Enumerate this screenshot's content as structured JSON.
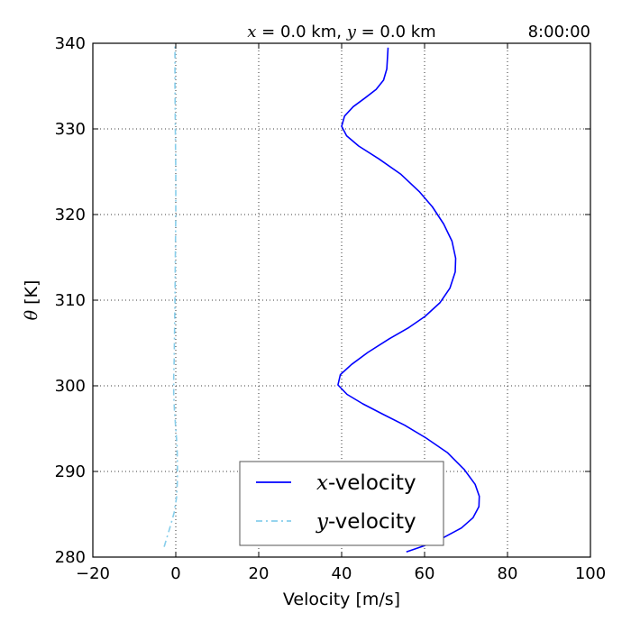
{
  "chart_data": {
    "type": "line",
    "title_left_x": "x",
    "title_left_eq1": " = 0.0 km, ",
    "title_left_y": "y",
    "title_left_eq2": " = 0.0 km",
    "title_right": "8:00:00",
    "xlabel": "Velocity [m/s]",
    "ylabel_symbol": "θ",
    "ylabel_unit": " [K]",
    "xlim": [
      -20,
      100
    ],
    "ylim": [
      280,
      340
    ],
    "xticks": [
      -20,
      0,
      20,
      40,
      60,
      80,
      100
    ],
    "xtick_labels": [
      "−20",
      "0",
      "20",
      "40",
      "60",
      "80",
      "100"
    ],
    "yticks": [
      280,
      290,
      300,
      310,
      320,
      330,
      340
    ],
    "ytick_labels": [
      "280",
      "290",
      "300",
      "310",
      "320",
      "330",
      "340"
    ],
    "grid": true,
    "legend_position": "lower-center",
    "series": [
      {
        "name_symbol": "x",
        "name_text": "-velocity",
        "color": "#0000ff",
        "dash": "solid",
        "points": [
          [
            55.6,
            280.6
          ],
          [
            59.8,
            281.3
          ],
          [
            64.7,
            282.3
          ],
          [
            68.9,
            283.4
          ],
          [
            71.7,
            284.6
          ],
          [
            73.1,
            285.9
          ],
          [
            73.2,
            287.1
          ],
          [
            72.2,
            288.5
          ],
          [
            69.6,
            290.2
          ],
          [
            65.5,
            292.2
          ],
          [
            60.4,
            293.9
          ],
          [
            55.2,
            295.4
          ],
          [
            49.9,
            296.7
          ],
          [
            45.1,
            297.9
          ],
          [
            41.3,
            299.0
          ],
          [
            39.1,
            300.1
          ],
          [
            39.7,
            301.3
          ],
          [
            42.4,
            302.5
          ],
          [
            46.3,
            303.9
          ],
          [
            51.5,
            305.5
          ],
          [
            56.2,
            306.8
          ],
          [
            60.1,
            308.1
          ],
          [
            63.7,
            309.7
          ],
          [
            66.1,
            311.4
          ],
          [
            67.4,
            313.3
          ],
          [
            67.5,
            314.9
          ],
          [
            66.6,
            316.9
          ],
          [
            64.6,
            318.9
          ],
          [
            61.9,
            320.9
          ],
          [
            58.7,
            322.7
          ],
          [
            54.3,
            324.7
          ],
          [
            49.0,
            326.5
          ],
          [
            44.1,
            328.0
          ],
          [
            41.2,
            329.2
          ],
          [
            40.0,
            330.3
          ],
          [
            40.7,
            331.5
          ],
          [
            42.8,
            332.6
          ],
          [
            45.6,
            333.6
          ],
          [
            48.3,
            334.6
          ],
          [
            50.1,
            335.7
          ],
          [
            50.9,
            337.0
          ],
          [
            51.2,
            339.5
          ]
        ]
      },
      {
        "name_symbol": "y",
        "name_text": "-velocity",
        "color": "#87ceeb",
        "dash": "dashdot",
        "points": [
          [
            -2.8,
            281.2
          ],
          [
            -2.0,
            282.5
          ],
          [
            -1.2,
            283.8
          ],
          [
            -0.4,
            285.2
          ],
          [
            0.2,
            287.0
          ],
          [
            0.4,
            289.0
          ],
          [
            0.4,
            291.0
          ],
          [
            0.3,
            293.0
          ],
          [
            0.0,
            295.0
          ],
          [
            -0.3,
            297.0
          ],
          [
            -0.5,
            299.0
          ],
          [
            -0.5,
            301.0
          ],
          [
            -0.4,
            303.0
          ],
          [
            -0.3,
            306.0
          ],
          [
            -0.2,
            310.0
          ],
          [
            -0.1,
            315.0
          ],
          [
            0.0,
            320.0
          ],
          [
            0.0,
            325.0
          ],
          [
            -0.1,
            330.0
          ],
          [
            -0.2,
            335.0
          ],
          [
            -0.2,
            339.8
          ]
        ]
      }
    ]
  }
}
